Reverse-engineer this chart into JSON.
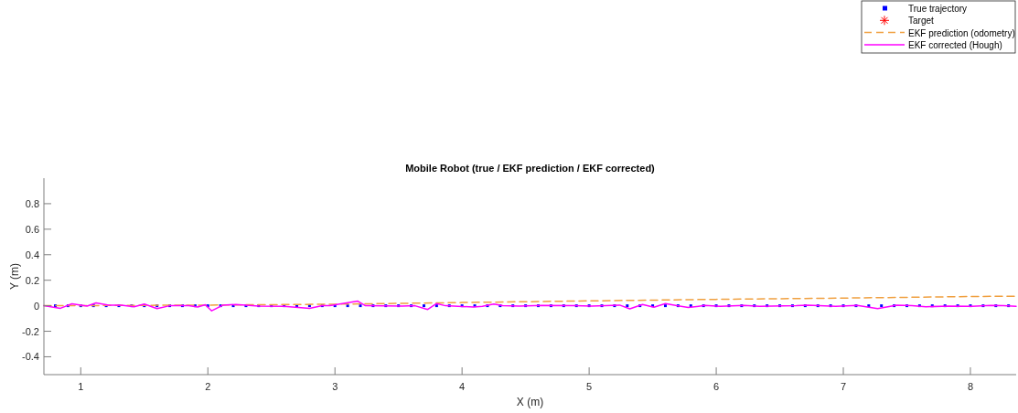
{
  "chart_data": {
    "type": "line",
    "title": "Mobile Robot (true / EKF prediction / EKF corrected)",
    "xlabel": "X (m)",
    "ylabel": "Y (m)",
    "xlim": [
      0.71,
      8.36
    ],
    "xticks": [
      1,
      2,
      3,
      4,
      5,
      6,
      7,
      8
    ],
    "ylim": [
      -0.54,
      1
    ],
    "yticks": [
      -0.4,
      -0.2,
      0,
      0.2,
      0.4,
      0.6,
      0.8
    ],
    "legend": "top right",
    "series": [
      {
        "name": "True trajectory",
        "type": "scatter",
        "marker": "square",
        "color": "#0000ff",
        "x": [
          0.8,
          0.9,
          1.0,
          1.1,
          1.2,
          1.3,
          1.4,
          1.5,
          1.6,
          1.7,
          1.8,
          1.9,
          2.0,
          2.1,
          2.2,
          2.3,
          2.4,
          2.5,
          2.6,
          2.7,
          2.8,
          2.9,
          3.0,
          3.1,
          3.2,
          3.3,
          3.4,
          3.5,
          3.6,
          3.7,
          3.8,
          3.9,
          4.0,
          4.1,
          4.2,
          4.3,
          4.4,
          4.5,
          4.6,
          4.7,
          4.8,
          4.9,
          5.0,
          5.1,
          5.2,
          5.3,
          5.4,
          5.5,
          5.6,
          5.7,
          5.8,
          5.9,
          6.0,
          6.1,
          6.2,
          6.3,
          6.4,
          6.5,
          6.6,
          6.7,
          6.8,
          6.9,
          7.0,
          7.1,
          7.2,
          7.3,
          7.4,
          7.5,
          7.6,
          7.7,
          7.8,
          7.9,
          8.0,
          8.1,
          8.2,
          8.3
        ],
        "values": [
          0,
          0,
          0,
          0,
          0,
          0,
          0,
          0,
          0,
          0,
          0,
          0,
          0,
          0,
          0,
          0,
          0,
          0,
          0,
          0,
          0,
          0,
          0,
          0,
          0,
          0,
          0,
          0,
          0,
          0,
          0,
          0,
          0,
          0,
          0,
          0,
          0,
          0,
          0,
          0,
          0,
          0,
          0,
          0,
          0,
          0,
          0,
          0,
          0,
          0,
          0,
          0,
          0,
          0,
          0,
          0,
          0,
          0,
          0,
          0,
          0,
          0,
          0,
          0,
          0,
          0,
          0,
          0,
          0,
          0,
          0,
          0,
          0,
          0,
          0,
          0
        ]
      },
      {
        "name": "Target",
        "type": "scatter",
        "marker": "star",
        "color": "#ff0000"
      },
      {
        "name": "EKF prediction (odometry)",
        "line_style": "dashed",
        "color": "#f0a040",
        "x": [
          0.71,
          2,
          3,
          4,
          5,
          6,
          7,
          8,
          8.36
        ],
        "values": [
          0,
          0.005,
          0.012,
          0.025,
          0.038,
          0.05,
          0.06,
          0.072,
          0.075
        ]
      },
      {
        "name": "EKF corrected (Hough)",
        "line_style": "solid",
        "color": "#ff00ff",
        "x": [
          0.71,
          0.84,
          0.93,
          1.05,
          1.12,
          1.22,
          1.32,
          1.42,
          1.5,
          1.6,
          1.7,
          1.85,
          1.92,
          1.98,
          2.03,
          2.12,
          2.22,
          2.4,
          2.6,
          2.8,
          2.9,
          2.96,
          3.18,
          3.24,
          3.53,
          3.63,
          3.73,
          3.8,
          3.87,
          4.09,
          4.16,
          4.25,
          4.32,
          4.45,
          4.63,
          4.88,
          5.02,
          5.24,
          5.32,
          5.42,
          5.51,
          5.6,
          5.69,
          5.78,
          5.91,
          6.03,
          6.22,
          6.34,
          6.63,
          6.72,
          6.94,
          7.11,
          7.27,
          7.42,
          7.54,
          7.65,
          7.83,
          8.01,
          8.16,
          8.26,
          8.36
        ],
        "values": [
          0,
          -0.02,
          0.015,
          -0.003,
          0.022,
          0.005,
          0.005,
          -0.008,
          0.013,
          -0.022,
          0,
          0,
          -0.01,
          0.008,
          -0.04,
          0.005,
          0.01,
          -0.003,
          -0.005,
          -0.02,
          0,
          0,
          0.036,
          0,
          -0.003,
          0,
          -0.029,
          0.017,
          0,
          -0.01,
          -0.005,
          0.014,
          0,
          -0.002,
          0.003,
          0,
          -0.003,
          0.005,
          -0.024,
          0.01,
          -0.012,
          0.017,
          0,
          -0.014,
          0.002,
          -0.005,
          0.002,
          -0.005,
          0,
          0.004,
          -0.005,
          0.002,
          -0.022,
          0.004,
          0,
          -0.008,
          -0.003,
          -0.005,
          0.003,
          0,
          -0.005
        ]
      }
    ]
  }
}
